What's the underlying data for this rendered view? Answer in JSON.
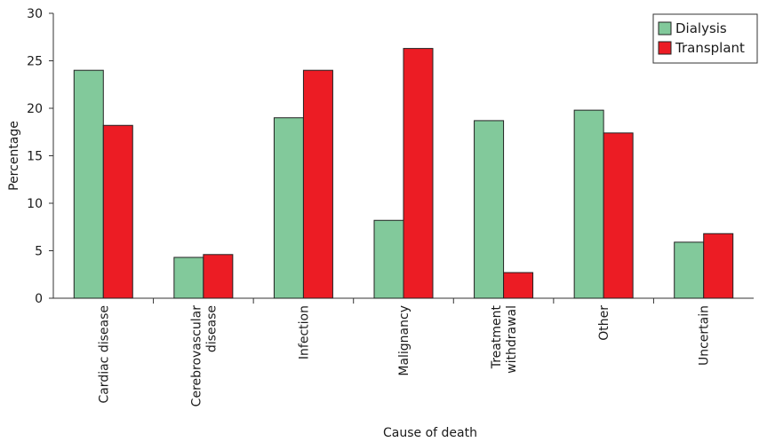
{
  "chart_data": {
    "type": "bar",
    "title": "",
    "xlabel": "Cause of death",
    "ylabel": "Percentage",
    "ylim": [
      0,
      30
    ],
    "yticks": [
      0,
      5,
      10,
      15,
      20,
      25,
      30
    ],
    "grid": false,
    "legend_position": "top-right",
    "categories": [
      [
        "Cardiac disease"
      ],
      [
        "Cerebrovascular",
        "disease"
      ],
      [
        "Infection"
      ],
      [
        "Malignancy"
      ],
      [
        "Treatment",
        "withdrawal"
      ],
      [
        "Other"
      ],
      [
        "Uncertain"
      ]
    ],
    "series": [
      {
        "name": "Dialysis",
        "color": "#82c99b",
        "values": [
          24.0,
          4.3,
          19.0,
          8.2,
          18.7,
          19.8,
          5.9
        ]
      },
      {
        "name": "Transplant",
        "color": "#ec1c24",
        "values": [
          18.2,
          4.6,
          24.0,
          26.3,
          2.7,
          17.4,
          6.8
        ]
      }
    ]
  }
}
